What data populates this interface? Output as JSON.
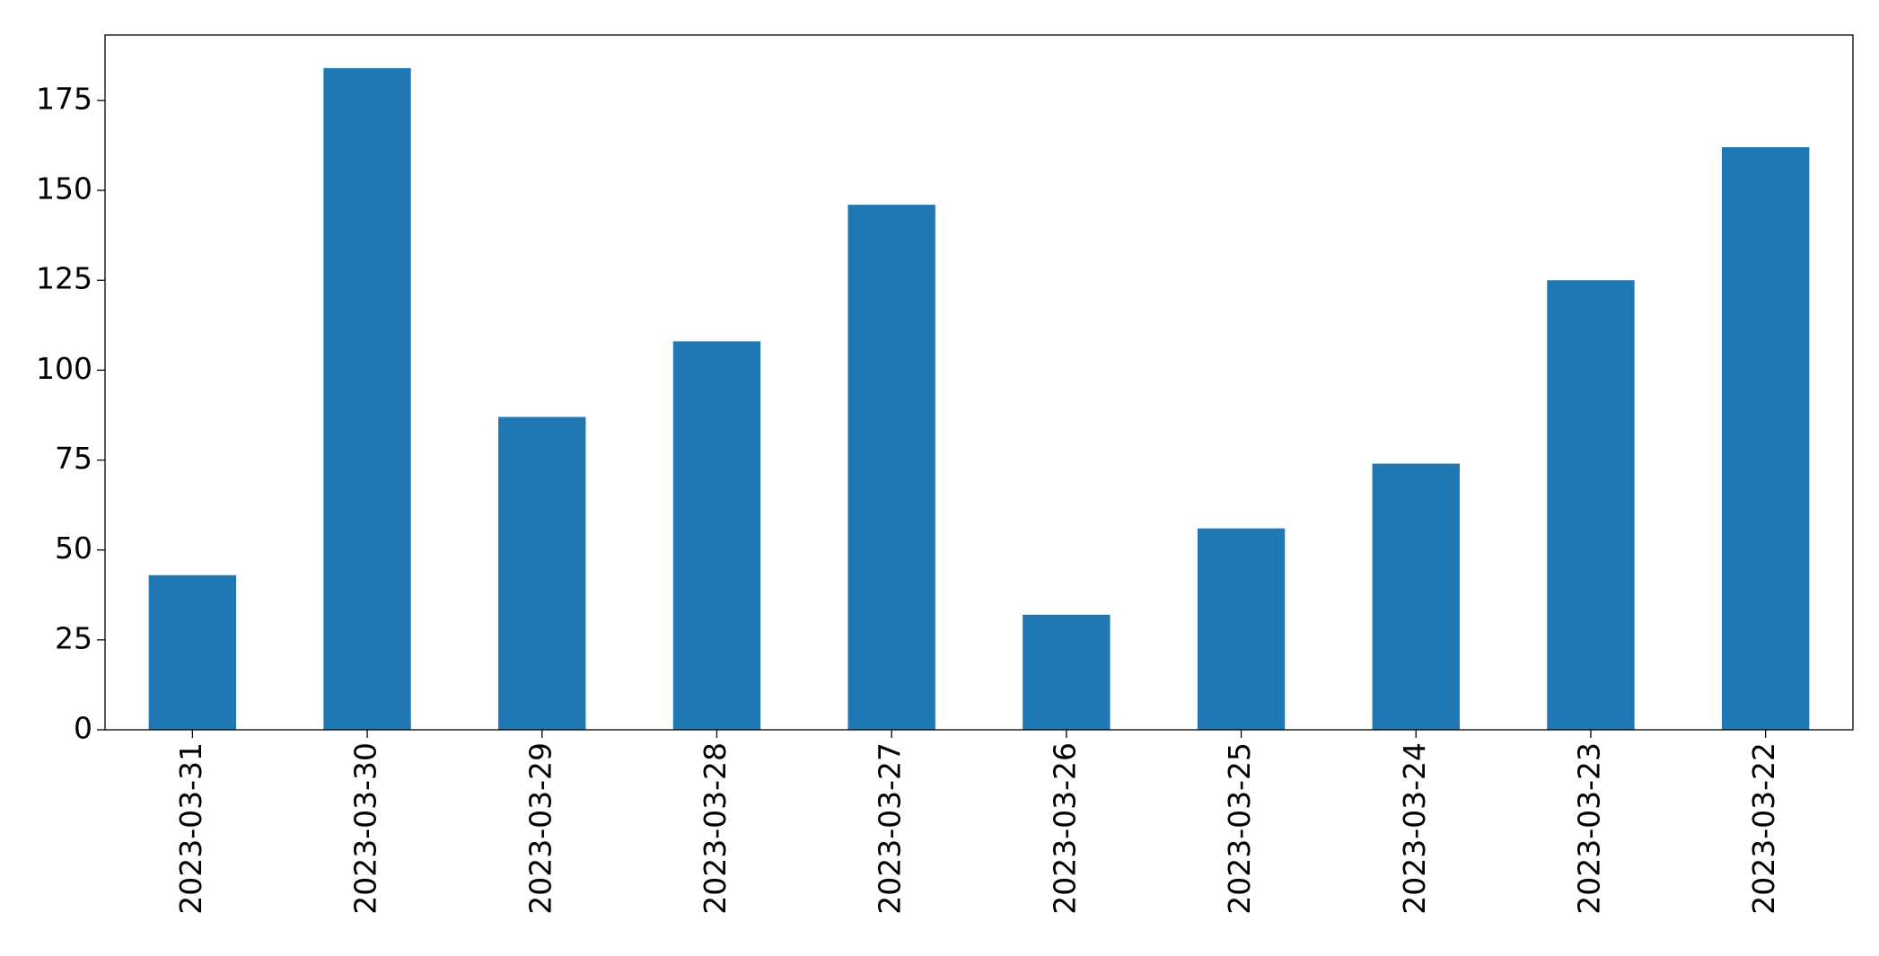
{
  "chart_data": {
    "type": "bar",
    "categories": [
      "2023-03-31",
      "2023-03-30",
      "2023-03-29",
      "2023-03-28",
      "2023-03-27",
      "2023-03-26",
      "2023-03-25",
      "2023-03-24",
      "2023-03-23",
      "2023-03-22"
    ],
    "values": [
      43,
      184,
      87,
      108,
      146,
      32,
      56,
      74,
      125,
      162
    ],
    "color": "#1f77b4",
    "ylim": [
      0,
      193.2
    ],
    "yticks": [
      0,
      25,
      50,
      75,
      100,
      125,
      150,
      175
    ],
    "grid": false
  }
}
